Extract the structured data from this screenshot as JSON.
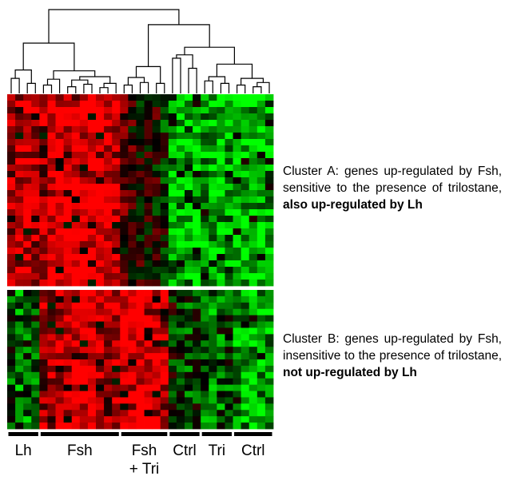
{
  "chart_data": {
    "type": "heatmap",
    "title": "",
    "color_scale": {
      "low": "#00ff00",
      "mid": "#000000",
      "high": "#ff0000"
    },
    "samples": 33,
    "groups": [
      {
        "label": "Lh",
        "sublabel": "",
        "start": 0,
        "count": 4
      },
      {
        "label": "Fsh",
        "sublabel": "",
        "start": 4,
        "count": 10
      },
      {
        "label": "Fsh",
        "sublabel": "+ Tri",
        "start": 14,
        "count": 6
      },
      {
        "label": "Ctrl",
        "sublabel": "",
        "start": 20,
        "count": 4
      },
      {
        "label": "Tri",
        "sublabel": "",
        "start": 24,
        "count": 4
      },
      {
        "label": "Ctrl",
        "sublabel": "",
        "start": 28,
        "count": 5
      }
    ],
    "clusters": [
      {
        "id": "A",
        "rows": 30,
        "profile": [
          0.55,
          0.75,
          0.8,
          0.6,
          0.65,
          0.85,
          0.9,
          0.95,
          0.9,
          0.85,
          0.95,
          0.9,
          0.85,
          0.8,
          0.3,
          0.2,
          0.1,
          0.0,
          0.05,
          -0.1,
          -0.6,
          -0.7,
          -0.75,
          -0.8,
          -0.55,
          -0.6,
          -0.7,
          -0.6,
          -0.75,
          -0.85,
          -0.8,
          -0.85,
          -0.75
        ],
        "name_prefix": "Cluster A: genes up-regulated by Fsh, sensitive to the presence of trilostane, ",
        "name_bold": "also up-regulated by Lh"
      },
      {
        "id": "B",
        "rows": 22,
        "profile": [
          -0.35,
          -0.5,
          -0.4,
          -0.3,
          0.55,
          0.6,
          0.7,
          0.75,
          0.8,
          0.85,
          0.8,
          0.75,
          0.7,
          0.65,
          0.8,
          0.85,
          0.9,
          0.85,
          0.8,
          0.75,
          -0.1,
          -0.2,
          -0.3,
          -0.2,
          -0.35,
          -0.45,
          -0.4,
          -0.3,
          -0.6,
          -0.75,
          -0.8,
          -0.7,
          -0.6
        ],
        "name_prefix": "Cluster B: genes up-regulated by Fsh, insensitive to the presence of trilostane, ",
        "name_bold": "not up-regulated by Lh"
      }
    ],
    "dendrogram": true
  }
}
